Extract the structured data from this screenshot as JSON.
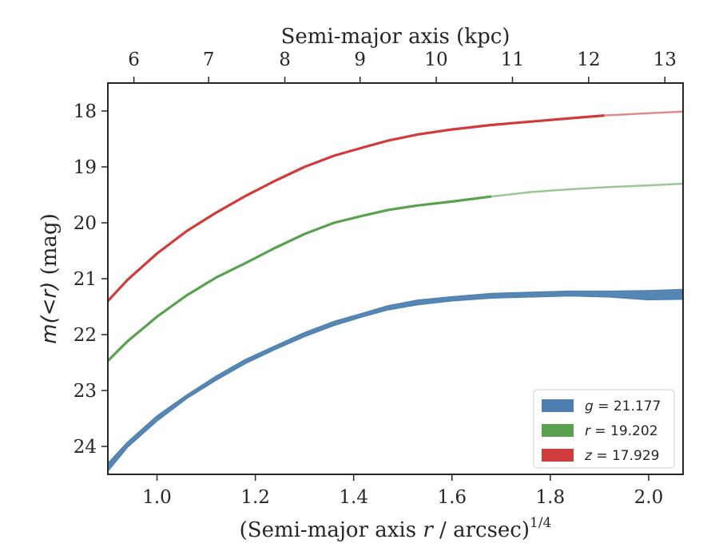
{
  "chart_data": {
    "type": "line",
    "xlabel": "(Semi-major axis r / arcsec)^(1/4)",
    "xlabel_parts": {
      "prefix": "(Semi-major axis ",
      "var": "r",
      "mid": " / arcsec)",
      "exp": "1/4"
    },
    "ylabel": "m(< r) (mag)",
    "ylabel_parts": {
      "math": "m(<r)",
      "unit": " (mag)"
    },
    "top_xlabel": "Semi-major axis (kpc)",
    "xlim": [
      0.9,
      2.07
    ],
    "ylim": [
      24.5,
      17.5
    ],
    "y_inverted": true,
    "x_ticks": [
      1.0,
      1.2,
      1.4,
      1.6,
      1.8,
      2.0
    ],
    "x_tick_labels": [
      "1.0",
      "1.2",
      "1.4",
      "1.6",
      "1.8",
      "2.0"
    ],
    "y_ticks": [
      18,
      19,
      20,
      21,
      22,
      23,
      24
    ],
    "y_tick_labels": [
      "18",
      "19",
      "20",
      "21",
      "22",
      "23",
      "24"
    ],
    "top_ticks_kpc": [
      6,
      7,
      8,
      9,
      10,
      11,
      12,
      13
    ],
    "top_tick_labels": [
      "6",
      "7",
      "8",
      "9",
      "10",
      "11",
      "12",
      "13"
    ],
    "top_tick_x_positions": [
      0.953,
      1.105,
      1.26,
      1.413,
      1.568,
      1.723,
      1.878,
      2.033
    ],
    "grid": false,
    "legend_position": "bottom-right",
    "series": [
      {
        "name": "g = 21.177",
        "band": "g",
        "mag": "21.177",
        "color": "#4c7fb0",
        "upper": [
          [
            0.9,
            24.3
          ],
          [
            0.94,
            23.92
          ],
          [
            1.0,
            23.45
          ],
          [
            1.06,
            23.08
          ],
          [
            1.12,
            22.74
          ],
          [
            1.18,
            22.44
          ],
          [
            1.24,
            22.2
          ],
          [
            1.3,
            21.96
          ],
          [
            1.36,
            21.76
          ],
          [
            1.42,
            21.61
          ],
          [
            1.47,
            21.48
          ],
          [
            1.53,
            21.38
          ],
          [
            1.6,
            21.32
          ],
          [
            1.68,
            21.26
          ],
          [
            1.76,
            21.24
          ],
          [
            1.84,
            21.22
          ],
          [
            1.92,
            21.22
          ],
          [
            2.0,
            21.21
          ],
          [
            2.07,
            21.19
          ]
        ],
        "lower": [
          [
            0.9,
            24.45
          ],
          [
            0.94,
            24.02
          ],
          [
            1.0,
            23.55
          ],
          [
            1.06,
            23.15
          ],
          [
            1.12,
            22.82
          ],
          [
            1.18,
            22.52
          ],
          [
            1.24,
            22.27
          ],
          [
            1.3,
            22.04
          ],
          [
            1.36,
            21.84
          ],
          [
            1.42,
            21.68
          ],
          [
            1.47,
            21.56
          ],
          [
            1.53,
            21.47
          ],
          [
            1.6,
            21.4
          ],
          [
            1.68,
            21.35
          ],
          [
            1.76,
            21.33
          ],
          [
            1.84,
            21.31
          ],
          [
            1.92,
            21.33
          ],
          [
            2.0,
            21.38
          ],
          [
            2.07,
            21.37
          ]
        ]
      },
      {
        "name": "r = 19.202",
        "band": "r",
        "mag": "19.202",
        "color": "#59a14f",
        "line": [
          [
            0.9,
            22.47
          ],
          [
            0.94,
            22.12
          ],
          [
            1.0,
            21.68
          ],
          [
            1.06,
            21.3
          ],
          [
            1.12,
            20.98
          ],
          [
            1.18,
            20.72
          ],
          [
            1.24,
            20.45
          ],
          [
            1.3,
            20.2
          ],
          [
            1.36,
            20.0
          ],
          [
            1.42,
            19.87
          ],
          [
            1.47,
            19.77
          ],
          [
            1.53,
            19.69
          ],
          [
            1.6,
            19.62
          ],
          [
            1.68,
            19.53
          ],
          [
            1.76,
            19.45
          ],
          [
            1.84,
            19.4
          ],
          [
            1.92,
            19.36
          ],
          [
            2.0,
            19.33
          ],
          [
            2.07,
            19.3
          ]
        ],
        "solid_until": 1.68
      },
      {
        "name": "z = 17.929",
        "band": "z",
        "mag": "17.929",
        "color": "#d03b3b",
        "line": [
          [
            0.9,
            21.4
          ],
          [
            0.94,
            21.02
          ],
          [
            1.0,
            20.55
          ],
          [
            1.06,
            20.15
          ],
          [
            1.12,
            19.82
          ],
          [
            1.18,
            19.52
          ],
          [
            1.24,
            19.25
          ],
          [
            1.3,
            19.0
          ],
          [
            1.36,
            18.8
          ],
          [
            1.42,
            18.65
          ],
          [
            1.47,
            18.53
          ],
          [
            1.53,
            18.42
          ],
          [
            1.6,
            18.33
          ],
          [
            1.68,
            18.25
          ],
          [
            1.76,
            18.19
          ],
          [
            1.84,
            18.13
          ],
          [
            1.91,
            18.08
          ],
          [
            2.0,
            18.04
          ],
          [
            2.07,
            18.01
          ]
        ],
        "solid_until": 1.91
      }
    ]
  }
}
